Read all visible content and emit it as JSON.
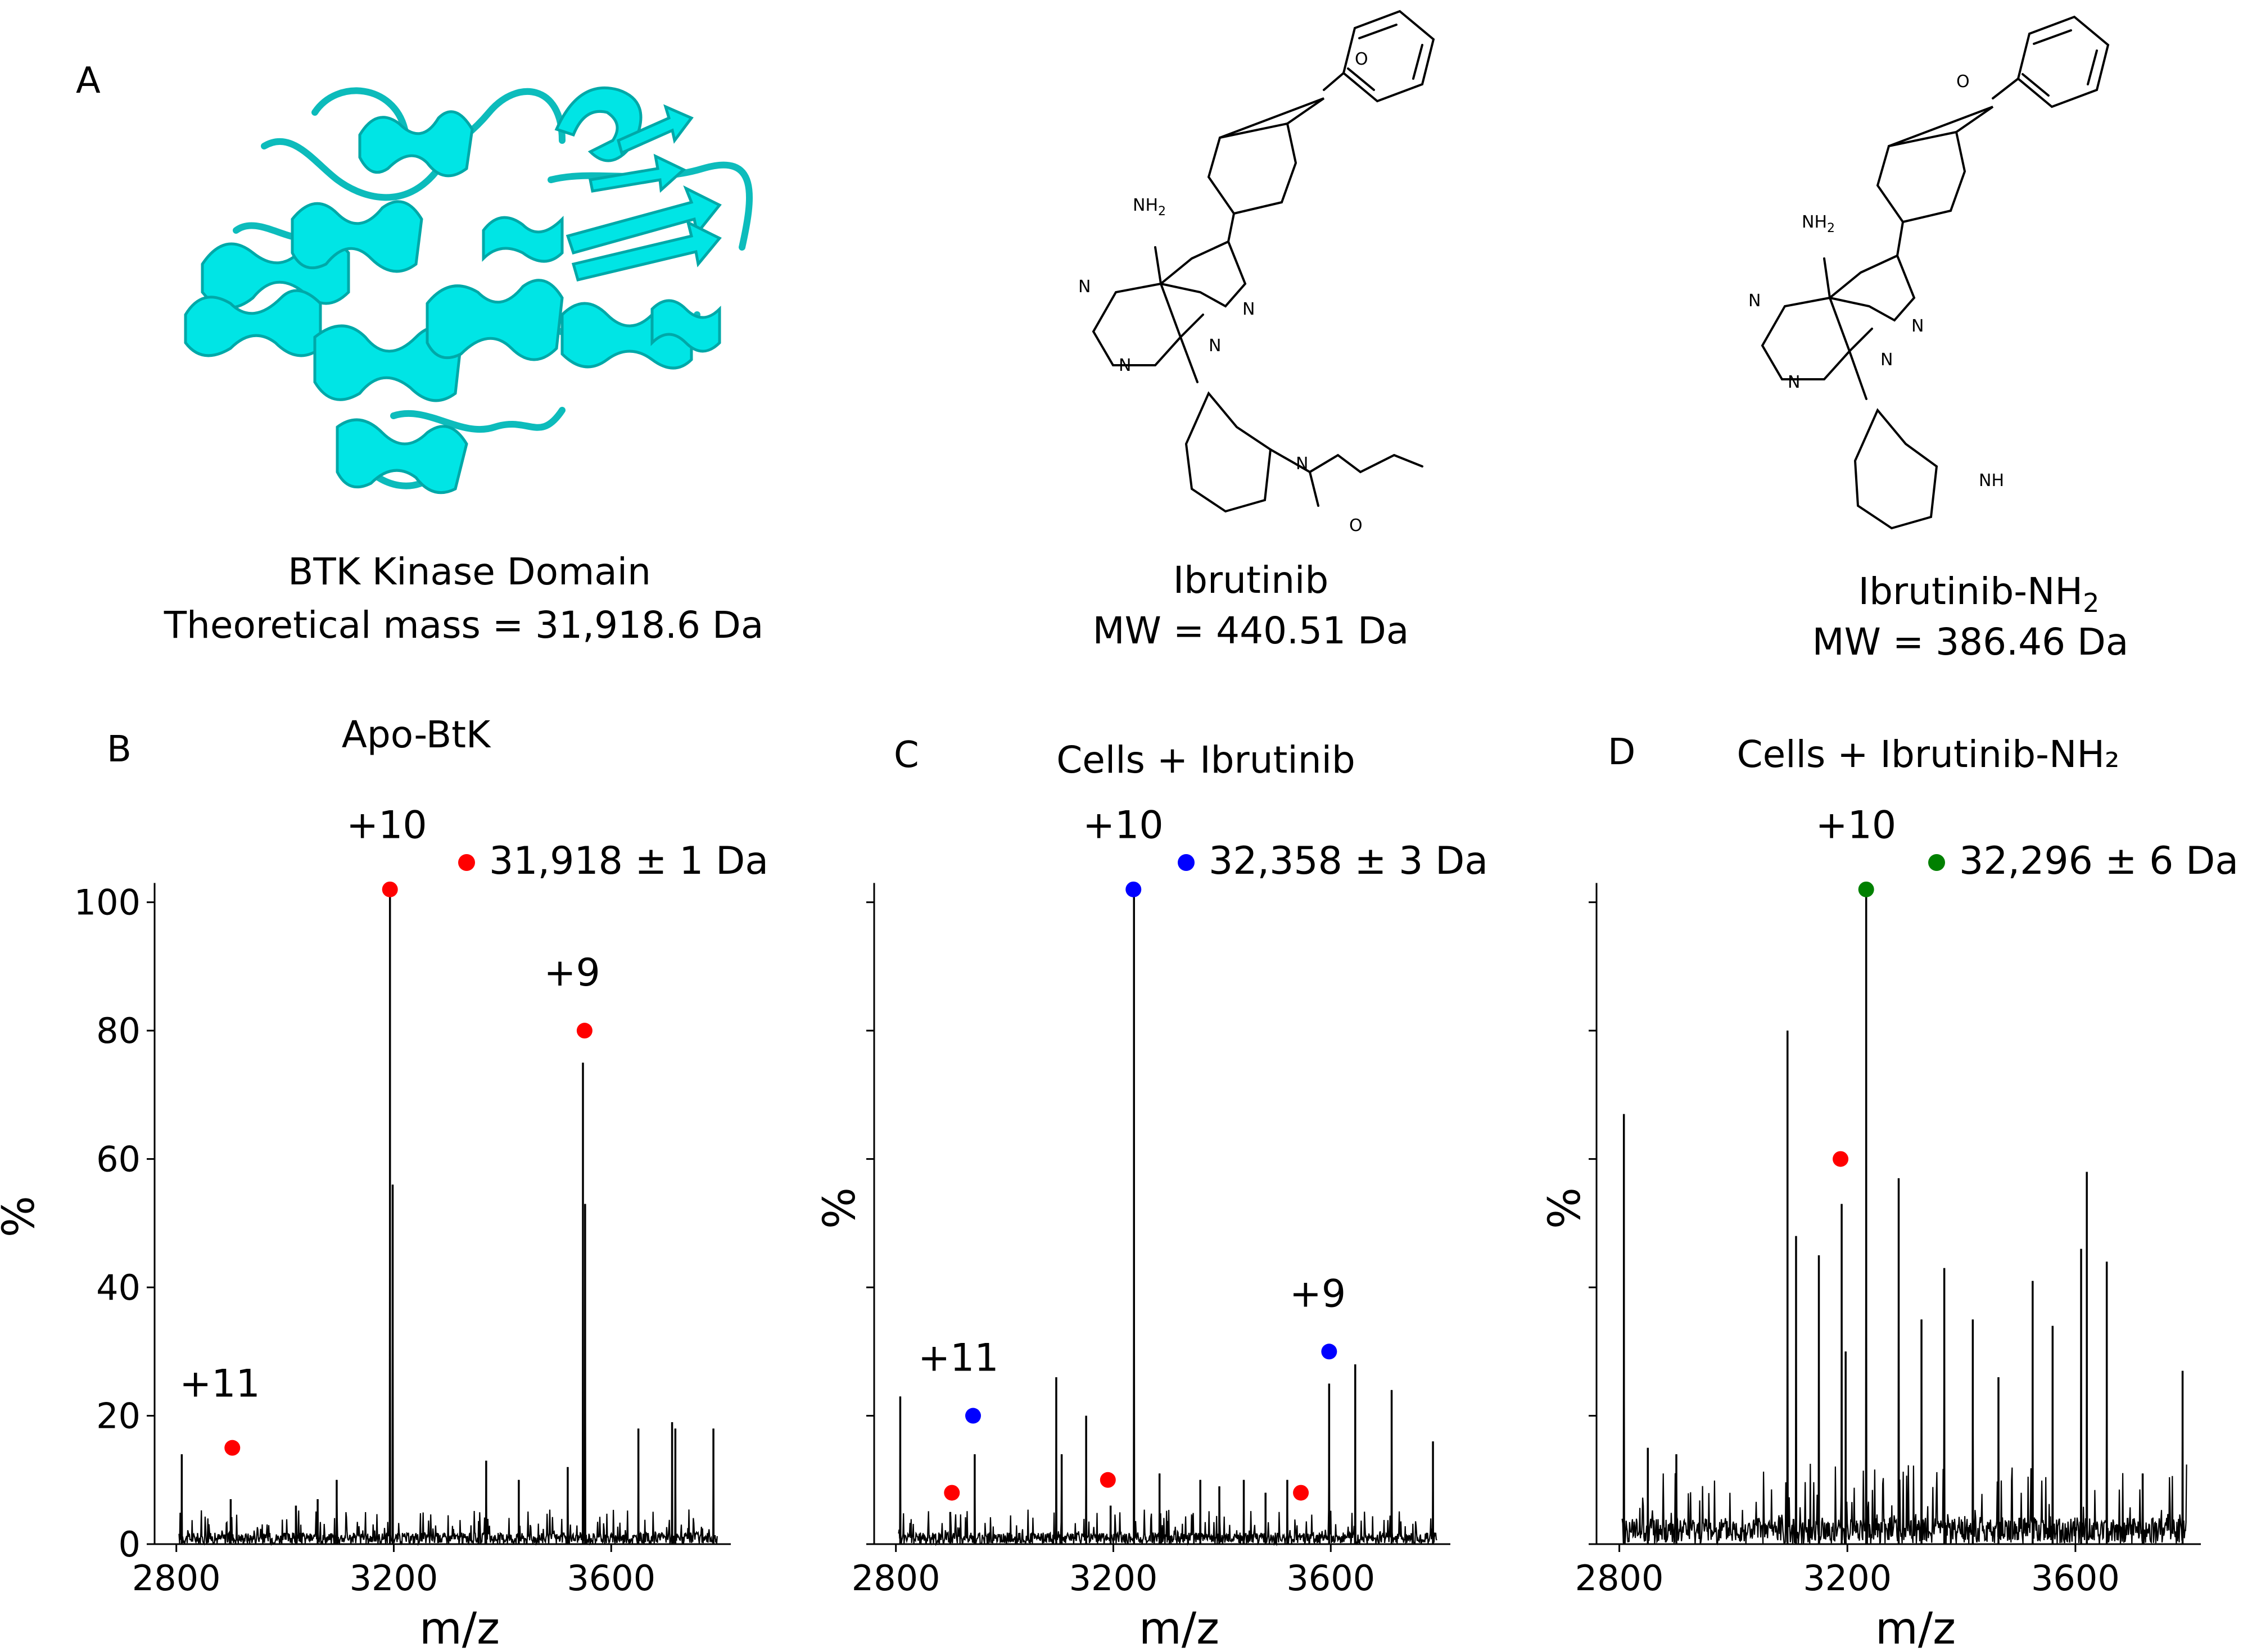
{
  "panel_a": {
    "label": "A",
    "protein": {
      "name": "BTK Kinase Domain",
      "mass_text": "Theoretical mass = 31,918.6 Da",
      "color": "#00e5e5"
    },
    "ibrutinib": {
      "name": "Ibrutinib",
      "mw_text": "MW = 440.51 Da",
      "atoms": {
        "nh2": "NH",
        "nh2_sub": "2",
        "n": "N",
        "o": "O"
      }
    },
    "ibrutinib_nh2": {
      "name_main": "Ibrutinib-NH",
      "name_sub": "2",
      "mw_text": "MW = 386.46 Da",
      "atoms": {
        "nh2": "NH",
        "nh2_sub": "2",
        "n": "N",
        "o": "O",
        "nh": "NH"
      }
    }
  },
  "chart_data": [
    {
      "type": "line",
      "panel_label": "B",
      "title": "Apo-BtK",
      "xlabel": "m/z",
      "ylabel": "%",
      "xlim": [
        2760,
        3820
      ],
      "ylim": [
        0,
        104
      ],
      "xticks": [
        "2800",
        "3200",
        "3600"
      ],
      "yticks": [
        "0",
        "20",
        "40",
        "60",
        "80",
        "100"
      ],
      "show_y_ticklabels": true,
      "baseline_noise": 3,
      "legend": {
        "text": "31,918 ± 1 Da",
        "color": "#ff0000"
      },
      "peaks": [
        {
          "x": 2810,
          "y": 14
        },
        {
          "x": 2900,
          "y": 7
        },
        {
          "x": 3020,
          "y": 6
        },
        {
          "x": 3060,
          "y": 7
        },
        {
          "x": 3095,
          "y": 10
        },
        {
          "x": 3193,
          "y": 101
        },
        {
          "x": 3198,
          "y": 56
        },
        {
          "x": 3370,
          "y": 13
        },
        {
          "x": 3430,
          "y": 10
        },
        {
          "x": 3520,
          "y": 12
        },
        {
          "x": 3548,
          "y": 75
        },
        {
          "x": 3552,
          "y": 53
        },
        {
          "x": 3650,
          "y": 18
        },
        {
          "x": 3712,
          "y": 19
        },
        {
          "x": 3718,
          "y": 18
        },
        {
          "x": 3788,
          "y": 18
        }
      ],
      "markers": [
        {
          "x": 2903,
          "y": 15,
          "color": "#ff0000"
        },
        {
          "x": 3193,
          "y": 102,
          "color": "#ff0000"
        },
        {
          "x": 3551,
          "y": 80,
          "color": "#ff0000"
        }
      ],
      "annotations": [
        {
          "text": "+11",
          "x": 2880,
          "y": 23
        },
        {
          "text": "+10",
          "x": 3187,
          "y": 110
        },
        {
          "text": "+9",
          "x": 3528,
          "y": 87
        }
      ]
    },
    {
      "type": "line",
      "panel_label": "C",
      "title": "Cells + Ibrutinib",
      "xlabel": "m/z",
      "ylabel": "%",
      "xlim": [
        2760,
        3820
      ],
      "ylim": [
        0,
        104
      ],
      "xticks": [
        "2800",
        "3200",
        "3600"
      ],
      "yticks": [
        "0",
        "20",
        "40",
        "60",
        "80",
        "100"
      ],
      "show_y_ticklabels": false,
      "baseline_noise": 3,
      "legend": {
        "text": "32,358 ± 3 Da",
        "color": "#0000ff"
      },
      "peaks": [
        {
          "x": 2808,
          "y": 23
        },
        {
          "x": 2900,
          "y": 5
        },
        {
          "x": 2945,
          "y": 14
        },
        {
          "x": 3095,
          "y": 26
        },
        {
          "x": 3105,
          "y": 14
        },
        {
          "x": 3150,
          "y": 20
        },
        {
          "x": 3195,
          "y": 6
        },
        {
          "x": 3238,
          "y": 101
        },
        {
          "x": 3285,
          "y": 11
        },
        {
          "x": 3360,
          "y": 10
        },
        {
          "x": 3395,
          "y": 9
        },
        {
          "x": 3440,
          "y": 10
        },
        {
          "x": 3480,
          "y": 8
        },
        {
          "x": 3520,
          "y": 10
        },
        {
          "x": 3597,
          "y": 25
        },
        {
          "x": 3645,
          "y": 28
        },
        {
          "x": 3712,
          "y": 24
        },
        {
          "x": 3788,
          "y": 16
        }
      ],
      "markers": [
        {
          "x": 2903,
          "y": 8,
          "color": "#ff0000"
        },
        {
          "x": 3190,
          "y": 10,
          "color": "#ff0000"
        },
        {
          "x": 3545,
          "y": 8,
          "color": "#ff0000"
        },
        {
          "x": 2942,
          "y": 20,
          "color": "#0000ff"
        },
        {
          "x": 3237,
          "y": 102,
          "color": "#0000ff"
        },
        {
          "x": 3597,
          "y": 30,
          "color": "#0000ff"
        }
      ],
      "annotations": [
        {
          "text": "+11",
          "x": 2915,
          "y": 27
        },
        {
          "text": "+10",
          "x": 3218,
          "y": 110
        },
        {
          "text": "+9",
          "x": 3576,
          "y": 37
        }
      ]
    },
    {
      "type": "line",
      "panel_label": "D",
      "title": "Cells + Ibrutinib-NH₂",
      "xlabel": "m/z",
      "ylabel": "%",
      "xlim": [
        2760,
        3820
      ],
      "ylim": [
        0,
        104
      ],
      "xticks": [
        "2800",
        "3200",
        "3600"
      ],
      "yticks": [
        "0",
        "20",
        "40",
        "60",
        "80",
        "100"
      ],
      "show_y_ticklabels": false,
      "baseline_noise": 7,
      "legend": {
        "text": "32,296 ± 6 Da",
        "color": "#008000"
      },
      "peaks": [
        {
          "x": 2808,
          "y": 67
        },
        {
          "x": 2850,
          "y": 15
        },
        {
          "x": 2900,
          "y": 14
        },
        {
          "x": 3095,
          "y": 80
        },
        {
          "x": 3110,
          "y": 48
        },
        {
          "x": 3150,
          "y": 45
        },
        {
          "x": 3190,
          "y": 53
        },
        {
          "x": 3197,
          "y": 30
        },
        {
          "x": 3233,
          "y": 101
        },
        {
          "x": 3290,
          "y": 57
        },
        {
          "x": 3330,
          "y": 35
        },
        {
          "x": 3370,
          "y": 43
        },
        {
          "x": 3420,
          "y": 35
        },
        {
          "x": 3465,
          "y": 26
        },
        {
          "x": 3525,
          "y": 41
        },
        {
          "x": 3560,
          "y": 34
        },
        {
          "x": 3610,
          "y": 46
        },
        {
          "x": 3620,
          "y": 58
        },
        {
          "x": 3655,
          "y": 44
        },
        {
          "x": 3718,
          "y": 11
        },
        {
          "x": 3788,
          "y": 27
        }
      ],
      "markers": [
        {
          "x": 3188,
          "y": 60,
          "color": "#ff0000"
        },
        {
          "x": 3233,
          "y": 102,
          "color": "#008000"
        }
      ],
      "annotations": [
        {
          "text": "+10",
          "x": 3215,
          "y": 110
        }
      ]
    }
  ]
}
